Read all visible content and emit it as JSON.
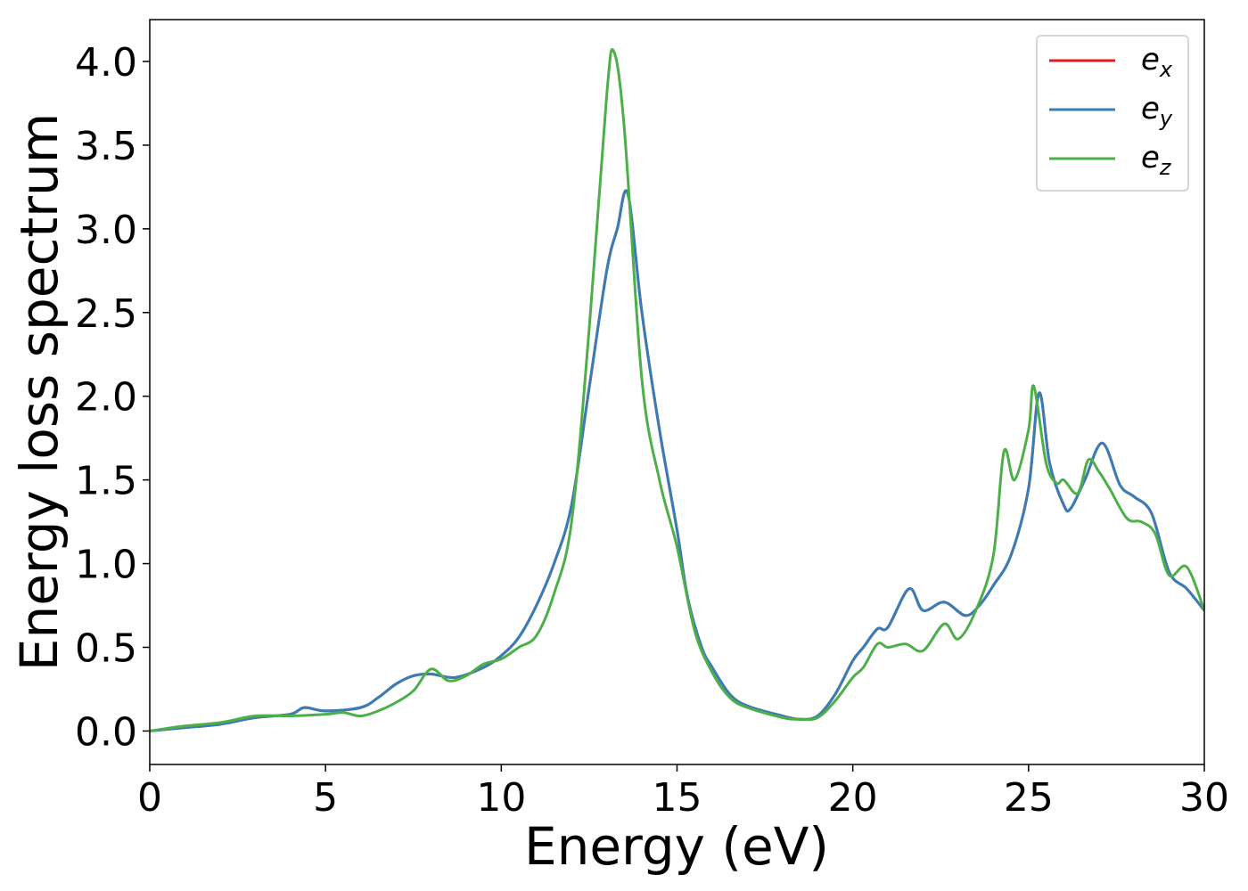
{
  "chart_data": {
    "type": "line",
    "title": "",
    "xlabel": "Energy (eV)",
    "ylabel": "Energy loss spectrum",
    "xlim": [
      0,
      30
    ],
    "ylim": [
      -0.2,
      4.25
    ],
    "xticks": [
      0,
      5,
      10,
      15,
      20,
      25,
      30
    ],
    "yticks": [
      0.0,
      0.5,
      1.0,
      1.5,
      2.0,
      2.5,
      3.0,
      3.5,
      4.0
    ],
    "grid": false,
    "legend": "top-right",
    "series": [
      {
        "name": "e_x",
        "color": "#e41a1c",
        "points": [
          [
            0,
            0.0
          ],
          [
            1,
            0.02
          ],
          [
            2,
            0.04
          ],
          [
            3,
            0.08
          ],
          [
            4,
            0.1
          ],
          [
            4.4,
            0.14
          ],
          [
            5,
            0.12
          ],
          [
            6,
            0.14
          ],
          [
            6.5,
            0.2
          ],
          [
            7,
            0.28
          ],
          [
            7.5,
            0.33
          ],
          [
            8,
            0.34
          ],
          [
            8.7,
            0.32
          ],
          [
            9.5,
            0.38
          ],
          [
            10,
            0.45
          ],
          [
            10.5,
            0.56
          ],
          [
            11,
            0.75
          ],
          [
            11.5,
            1.0
          ],
          [
            12,
            1.35
          ],
          [
            12.5,
            2.05
          ],
          [
            13,
            2.75
          ],
          [
            13.3,
            3.0
          ],
          [
            13.6,
            3.21
          ],
          [
            14,
            2.5
          ],
          [
            14.5,
            1.8
          ],
          [
            15,
            1.2
          ],
          [
            15.3,
            0.8
          ],
          [
            15.7,
            0.5
          ],
          [
            16,
            0.38
          ],
          [
            16.5,
            0.22
          ],
          [
            17,
            0.15
          ],
          [
            18,
            0.09
          ],
          [
            18.5,
            0.07
          ],
          [
            19,
            0.09
          ],
          [
            19.5,
            0.22
          ],
          [
            20,
            0.42
          ],
          [
            20.3,
            0.5
          ],
          [
            20.7,
            0.61
          ],
          [
            21,
            0.62
          ],
          [
            21.6,
            0.85
          ],
          [
            22,
            0.72
          ],
          [
            22.6,
            0.77
          ],
          [
            23.2,
            0.69
          ],
          [
            23.6,
            0.75
          ],
          [
            24,
            0.87
          ],
          [
            24.5,
            1.05
          ],
          [
            25,
            1.45
          ],
          [
            25.3,
            2.02
          ],
          [
            25.6,
            1.6
          ],
          [
            26,
            1.35
          ],
          [
            26.2,
            1.33
          ],
          [
            26.6,
            1.5
          ],
          [
            27.1,
            1.72
          ],
          [
            27.6,
            1.47
          ],
          [
            28,
            1.4
          ],
          [
            28.5,
            1.3
          ],
          [
            29,
            0.95
          ],
          [
            29.5,
            0.85
          ],
          [
            30,
            0.72
          ]
        ]
      },
      {
        "name": "e_y",
        "color": "#377eb8",
        "points": [
          [
            0,
            0.0
          ],
          [
            1,
            0.02
          ],
          [
            2,
            0.04
          ],
          [
            3,
            0.08
          ],
          [
            4,
            0.1
          ],
          [
            4.4,
            0.14
          ],
          [
            5,
            0.12
          ],
          [
            6,
            0.14
          ],
          [
            6.5,
            0.2
          ],
          [
            7,
            0.28
          ],
          [
            7.5,
            0.33
          ],
          [
            8,
            0.34
          ],
          [
            8.7,
            0.32
          ],
          [
            9.5,
            0.38
          ],
          [
            10,
            0.45
          ],
          [
            10.5,
            0.56
          ],
          [
            11,
            0.75
          ],
          [
            11.5,
            1.0
          ],
          [
            12,
            1.35
          ],
          [
            12.5,
            2.05
          ],
          [
            13,
            2.75
          ],
          [
            13.3,
            3.0
          ],
          [
            13.6,
            3.21
          ],
          [
            14,
            2.5
          ],
          [
            14.5,
            1.8
          ],
          [
            15,
            1.2
          ],
          [
            15.3,
            0.8
          ],
          [
            15.7,
            0.5
          ],
          [
            16,
            0.38
          ],
          [
            16.5,
            0.22
          ],
          [
            17,
            0.15
          ],
          [
            18,
            0.09
          ],
          [
            18.5,
            0.07
          ],
          [
            19,
            0.09
          ],
          [
            19.5,
            0.22
          ],
          [
            20,
            0.42
          ],
          [
            20.3,
            0.5
          ],
          [
            20.7,
            0.61
          ],
          [
            21,
            0.62
          ],
          [
            21.6,
            0.85
          ],
          [
            22,
            0.72
          ],
          [
            22.6,
            0.77
          ],
          [
            23.2,
            0.69
          ],
          [
            23.6,
            0.75
          ],
          [
            24,
            0.87
          ],
          [
            24.5,
            1.05
          ],
          [
            25,
            1.45
          ],
          [
            25.3,
            2.02
          ],
          [
            25.6,
            1.6
          ],
          [
            26,
            1.35
          ],
          [
            26.2,
            1.33
          ],
          [
            26.6,
            1.5
          ],
          [
            27.1,
            1.72
          ],
          [
            27.6,
            1.47
          ],
          [
            28,
            1.4
          ],
          [
            28.5,
            1.3
          ],
          [
            29,
            0.95
          ],
          [
            29.5,
            0.85
          ],
          [
            30,
            0.72
          ]
        ]
      },
      {
        "name": "e_z",
        "color": "#4daf4a",
        "points": [
          [
            0,
            0.0
          ],
          [
            1,
            0.03
          ],
          [
            2,
            0.05
          ],
          [
            3,
            0.09
          ],
          [
            4,
            0.09
          ],
          [
            5,
            0.1
          ],
          [
            5.5,
            0.11
          ],
          [
            6,
            0.09
          ],
          [
            6.5,
            0.12
          ],
          [
            7,
            0.17
          ],
          [
            7.5,
            0.24
          ],
          [
            8,
            0.37
          ],
          [
            8.5,
            0.3
          ],
          [
            9,
            0.33
          ],
          [
            9.5,
            0.4
          ],
          [
            10,
            0.43
          ],
          [
            10.5,
            0.5
          ],
          [
            11,
            0.57
          ],
          [
            11.5,
            0.82
          ],
          [
            12,
            1.25
          ],
          [
            12.5,
            2.4
          ],
          [
            13,
            3.8
          ],
          [
            13.2,
            4.06
          ],
          [
            13.5,
            3.6
          ],
          [
            14,
            2.1
          ],
          [
            14.5,
            1.5
          ],
          [
            15,
            1.1
          ],
          [
            15.5,
            0.6
          ],
          [
            16,
            0.35
          ],
          [
            16.5,
            0.2
          ],
          [
            17,
            0.14
          ],
          [
            18,
            0.08
          ],
          [
            18.5,
            0.07
          ],
          [
            19,
            0.08
          ],
          [
            19.5,
            0.18
          ],
          [
            20,
            0.32
          ],
          [
            20.3,
            0.38
          ],
          [
            20.7,
            0.52
          ],
          [
            21,
            0.5
          ],
          [
            21.5,
            0.52
          ],
          [
            22,
            0.48
          ],
          [
            22.6,
            0.64
          ],
          [
            23,
            0.55
          ],
          [
            23.5,
            0.72
          ],
          [
            24,
            1.05
          ],
          [
            24.3,
            1.67
          ],
          [
            24.6,
            1.5
          ],
          [
            25,
            1.8
          ],
          [
            25.15,
            2.06
          ],
          [
            25.5,
            1.6
          ],
          [
            25.8,
            1.48
          ],
          [
            26,
            1.5
          ],
          [
            26.4,
            1.42
          ],
          [
            26.7,
            1.62
          ],
          [
            27,
            1.55
          ],
          [
            27.3,
            1.45
          ],
          [
            27.8,
            1.27
          ],
          [
            28.2,
            1.25
          ],
          [
            28.6,
            1.18
          ],
          [
            29,
            0.93
          ],
          [
            29.5,
            0.98
          ],
          [
            30,
            0.72
          ]
        ]
      }
    ]
  }
}
